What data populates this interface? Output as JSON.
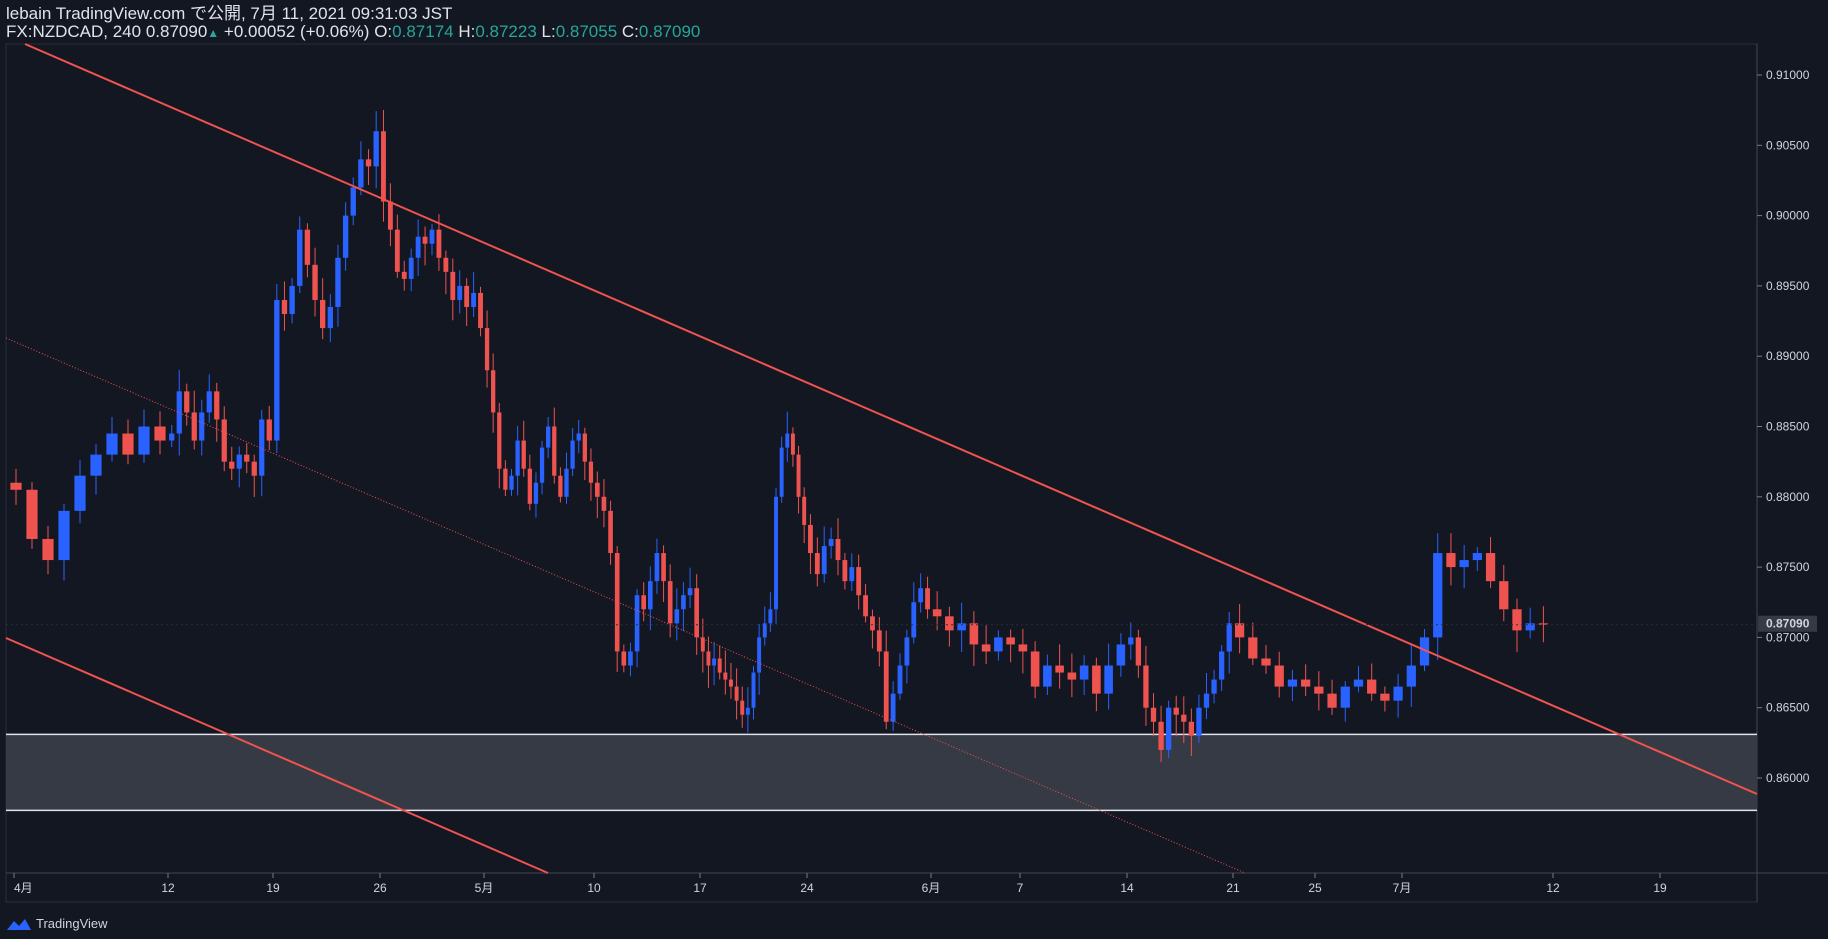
{
  "header": {
    "line1": "lebain TradingView.com で公開, 7月 11, 2021 09:31:03 JST",
    "symbol": "FX:NZDCAD, 240",
    "last": "0.87090",
    "change": "+0.00052 (+0.06%)",
    "o_label": "O:",
    "o_value": "0.87174",
    "h_label": "H:",
    "h_value": "0.87223",
    "l_label": "L:",
    "l_value": "0.87055",
    "c_label": "C:",
    "c_value": "0.87090"
  },
  "footer": {
    "brand": "TradingView"
  },
  "colors": {
    "background": "#131722",
    "up": "#2962ff",
    "down": "#ef5350",
    "trendline": "#f05350",
    "zone": "#363a45"
  },
  "chart_data": {
    "type": "candlestick",
    "symbol": "FX:NZDCAD",
    "timeframe": "240",
    "ylim": [
      0.8575,
      0.914
    ],
    "y_ticks": [
      "0.91000",
      "0.90500",
      "0.90000",
      "0.89500",
      "0.89000",
      "0.88500",
      "0.88000",
      "0.87500",
      "0.87000",
      "0.86500",
      "0.86000"
    ],
    "current_price": "0.87090",
    "x_ticks": [
      "4月",
      "12",
      "19",
      "26",
      "5月",
      "10",
      "17",
      "24",
      "6月",
      "7",
      "14",
      "21",
      "25",
      "7月",
      "12",
      "19"
    ],
    "close_path": [
      [
        0.8805,
        0.877,
        0.8755,
        0.879,
        0.8815,
        0.883,
        0.8845,
        0.883,
        0.885,
        0.884
      ],
      [
        0.8845,
        0.8875,
        0.886,
        0.884,
        0.886,
        0.8875,
        0.8855,
        0.8825,
        0.882,
        0.883,
        0.8825,
        0.8815,
        0.8855,
        0.884
      ],
      [
        0.894,
        0.893,
        0.895,
        0.899,
        0.8965,
        0.894,
        0.892,
        0.8935,
        0.897,
        0.9,
        0.902,
        0.904,
        0.9035,
        0.906
      ],
      [
        0.901,
        0.899,
        0.896,
        0.8955,
        0.897,
        0.8985,
        0.898,
        0.899,
        0.897,
        0.896,
        0.894,
        0.895,
        0.8935,
        0.8945,
        0.892
      ],
      [
        0.889,
        0.886,
        0.882,
        0.8805,
        0.8815,
        0.884,
        0.882,
        0.8795,
        0.881,
        0.8835,
        0.885,
        0.8815,
        0.88,
        0.882,
        0.884,
        0.8845,
        0.8825,
        0.881
      ],
      [
        0.88,
        0.879,
        0.876,
        0.869,
        0.868,
        0.869,
        0.873,
        0.872,
        0.874,
        0.876,
        0.874,
        0.871,
        0.872,
        0.873,
        0.8735,
        0.87
      ],
      [
        0.869,
        0.868,
        0.8685,
        0.8675,
        0.867,
        0.8665,
        0.8655,
        0.8645,
        0.865,
        0.8675,
        0.87,
        0.871,
        0.872,
        0.88,
        0.8835,
        0.8845,
        0.883,
        0.88,
        0.878
      ],
      [
        0.876,
        0.8745,
        0.8765,
        0.877,
        0.8755,
        0.874,
        0.875,
        0.873,
        0.8715,
        0.8705,
        0.869,
        0.864,
        0.866,
        0.868,
        0.87,
        0.8725,
        0.8735,
        0.872
      ],
      [
        0.8715,
        0.8705,
        0.871,
        0.8695,
        0.869,
        0.87,
        0.8695,
        0.869,
        0.8665,
        0.868,
        0.8675,
        0.867,
        0.868,
        0.866,
        0.868,
        0.8695
      ],
      [
        0.87,
        0.868,
        0.865,
        0.864,
        0.862,
        0.865,
        0.8645,
        0.864,
        0.863,
        0.865,
        0.866,
        0.867,
        0.869,
        0.871
      ],
      [
        0.87,
        0.8685,
        0.868,
        0.8665,
        0.867,
        0.8665,
        0.866,
        0.865,
        0.8665,
        0.867,
        0.866,
        0.8655,
        0.8665,
        0.868,
        0.87,
        0.876,
        0.875,
        0.8755,
        0.876,
        0.874,
        0.872,
        0.8705,
        0.871,
        0.8709
      ]
    ],
    "trendlines": [
      {
        "name": "upper",
        "style": "solid"
      },
      {
        "name": "lower",
        "style": "solid"
      },
      {
        "name": "middle",
        "style": "dotted"
      }
    ],
    "zone": {
      "top": 0.8631,
      "bottom": 0.8577
    },
    "grid": false,
    "watermark": "TradingView"
  }
}
